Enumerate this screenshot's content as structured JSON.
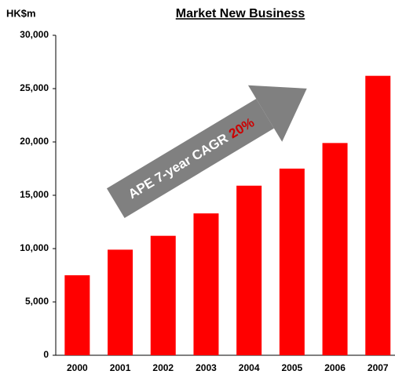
{
  "chart_data": {
    "type": "bar",
    "title": "Market New Business",
    "y_label": "HK$m",
    "categories": [
      "2000",
      "2001",
      "2002",
      "2003",
      "2004",
      "2005",
      "2006",
      "2007"
    ],
    "values": [
      7500,
      9900,
      11200,
      13300,
      15900,
      17500,
      19900,
      26200
    ],
    "color": "#ff0000",
    "ylim": [
      0,
      30000
    ],
    "yticks": [
      0,
      {
        "value": 5000,
        "label": "5,000"
      },
      {
        "value": 10000,
        "label": "10,000"
      },
      {
        "value": 15000,
        "label": "15,000"
      },
      {
        "value": 20000,
        "label": "20,000"
      },
      {
        "value": 25000,
        "label": "25,000"
      },
      {
        "value": 30000,
        "label": "30,000"
      }
    ],
    "grid": false,
    "annotation": {
      "text": "APE 7-year CAGR",
      "highlight": "20%",
      "color": "#808080",
      "highlight_color": "#cc0000"
    }
  }
}
